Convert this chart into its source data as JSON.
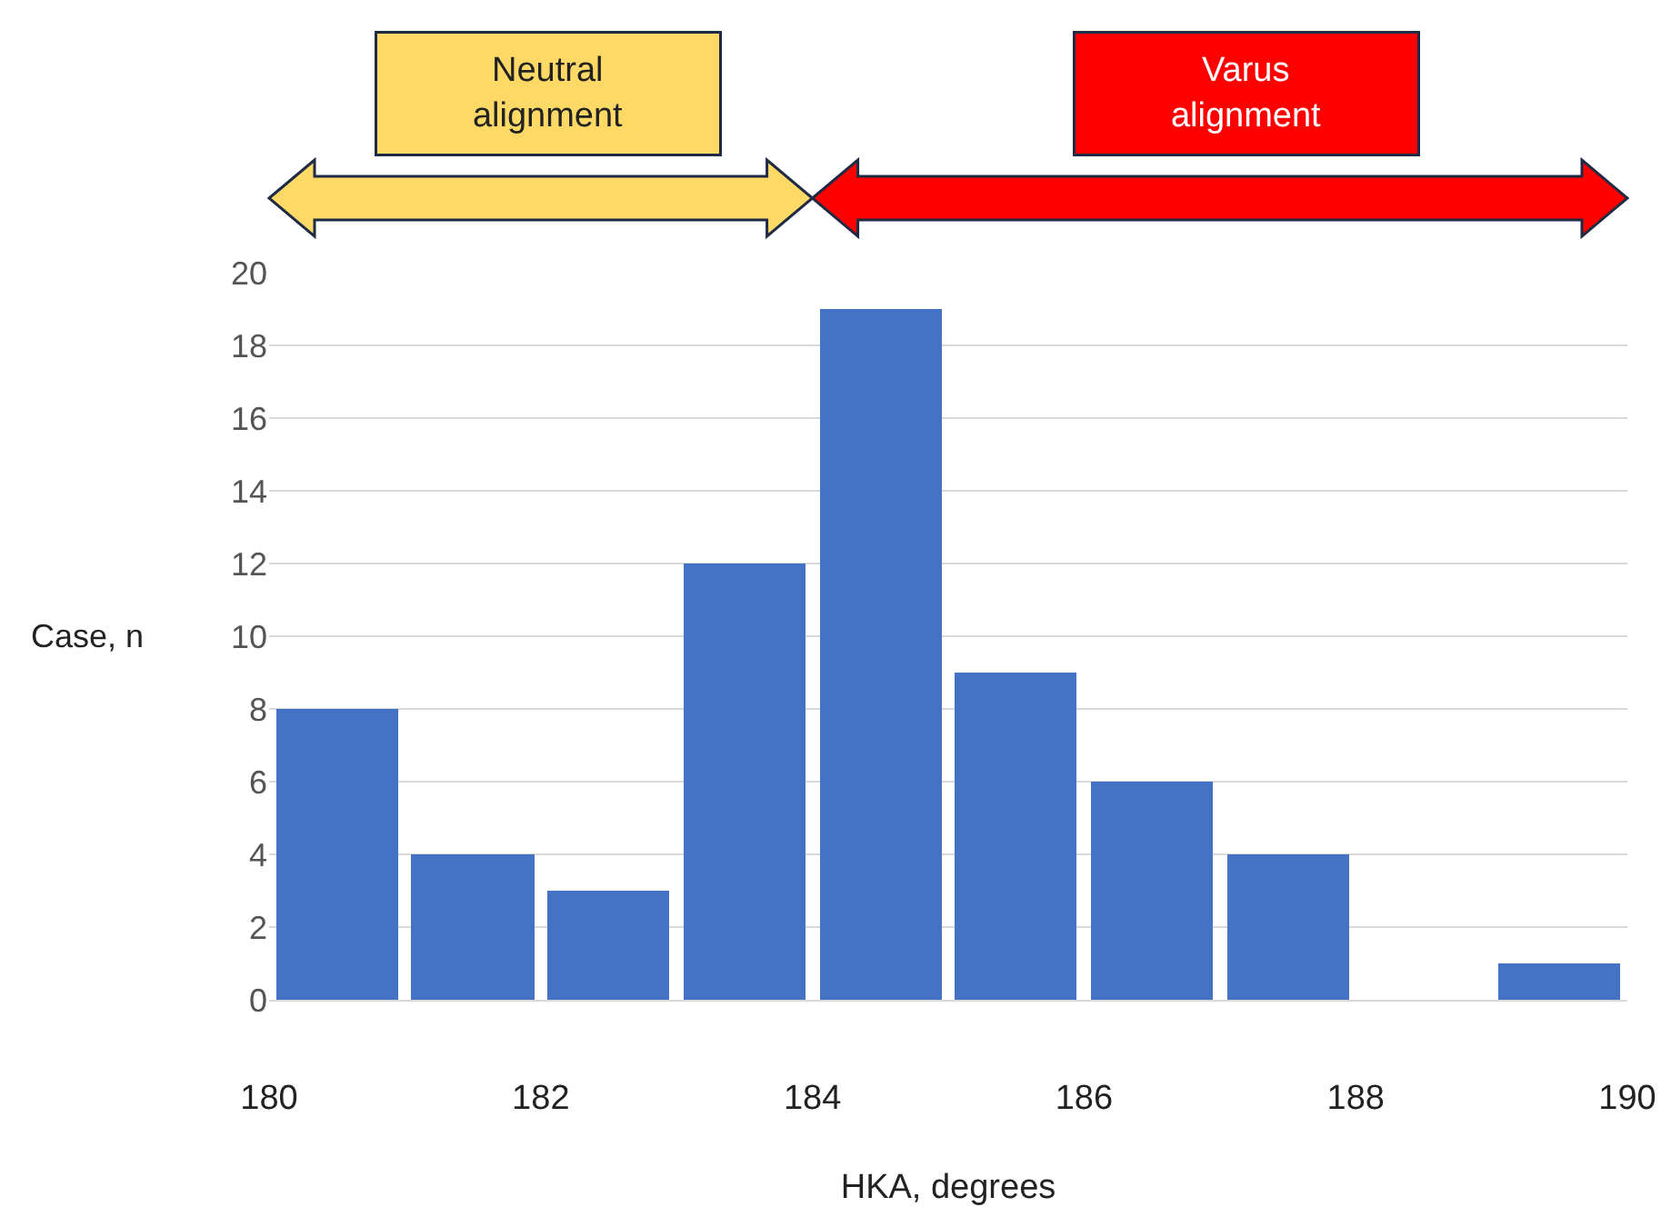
{
  "chart_data": {
    "type": "histogram",
    "bins": [
      180,
      181,
      182,
      183,
      184,
      185,
      186,
      187,
      188,
      189,
      190
    ],
    "values": [
      8,
      4,
      3,
      12,
      19,
      9,
      6,
      4,
      0,
      1
    ],
    "color": "#4472c4",
    "xlabel": "HKA, degrees",
    "ylabel": "Case, n",
    "xlim": [
      180,
      190
    ],
    "xticks": [
      180,
      182,
      184,
      186,
      188,
      190
    ],
    "ylim": [
      0,
      20
    ],
    "yticks": [
      0,
      2,
      4,
      6,
      8,
      10,
      12,
      14,
      16,
      18,
      20
    ],
    "grid": "y",
    "annotations": [
      "Neutral alignment",
      "Varus alignment"
    ]
  }
}
